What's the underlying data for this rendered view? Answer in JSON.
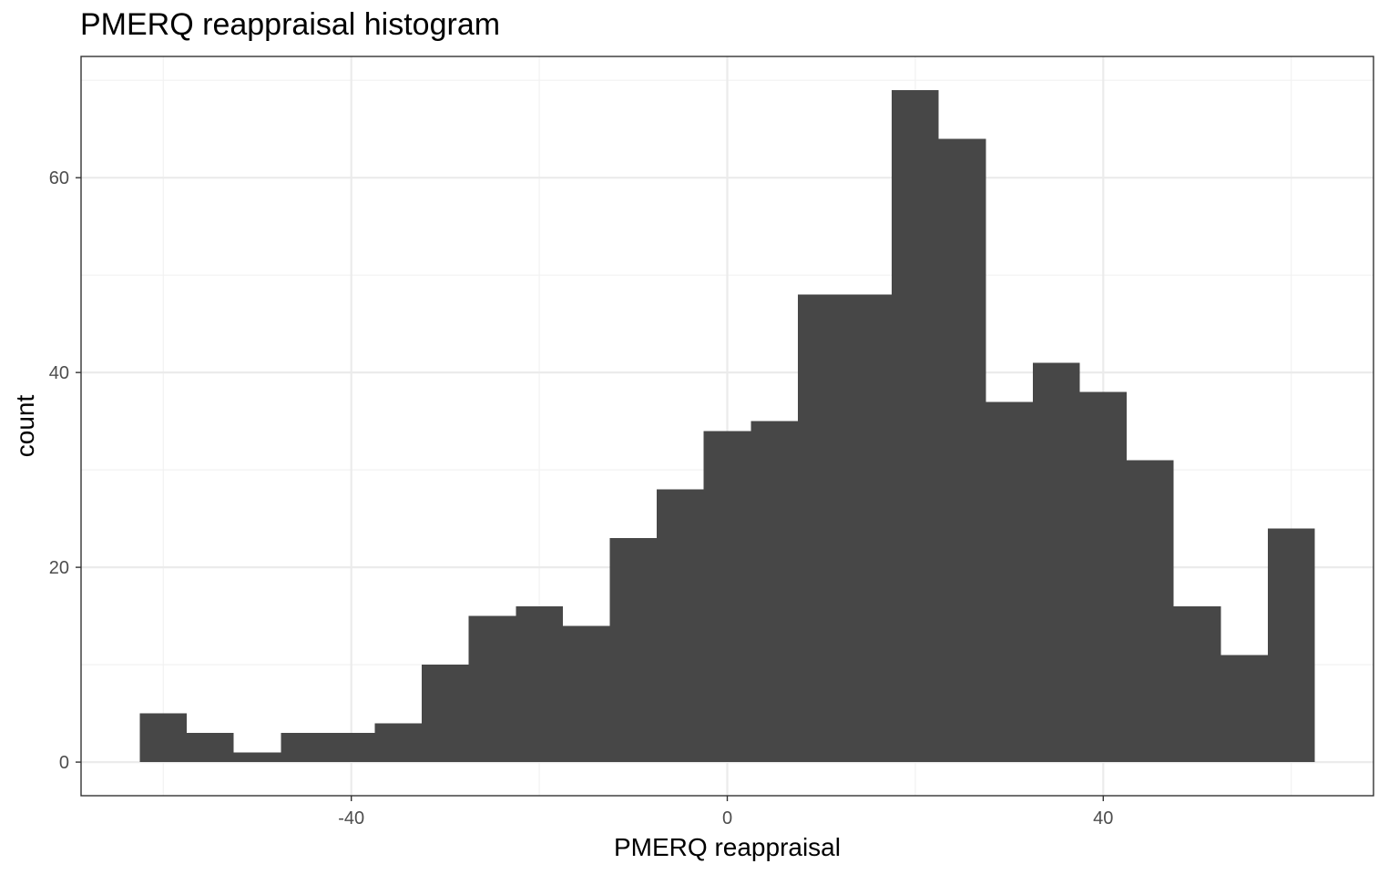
{
  "chart_data": {
    "type": "bar",
    "title": "PMERQ reappraisal histogram",
    "xlabel": "PMERQ reappraisal",
    "ylabel": "count",
    "bin_width": 5,
    "bins": [
      {
        "start": -62.5,
        "end": -57.5,
        "count": 5
      },
      {
        "start": -57.5,
        "end": -52.5,
        "count": 3
      },
      {
        "start": -52.5,
        "end": -47.5,
        "count": 1
      },
      {
        "start": -47.5,
        "end": -42.5,
        "count": 3
      },
      {
        "start": -42.5,
        "end": -37.5,
        "count": 3
      },
      {
        "start": -37.5,
        "end": -32.5,
        "count": 4
      },
      {
        "start": -32.5,
        "end": -27.5,
        "count": 10
      },
      {
        "start": -27.5,
        "end": -22.5,
        "count": 15
      },
      {
        "start": -22.5,
        "end": -17.5,
        "count": 16
      },
      {
        "start": -17.5,
        "end": -12.5,
        "count": 14
      },
      {
        "start": -12.5,
        "end": -7.5,
        "count": 23
      },
      {
        "start": -7.5,
        "end": -2.5,
        "count": 28
      },
      {
        "start": -2.5,
        "end": 2.5,
        "count": 34
      },
      {
        "start": 2.5,
        "end": 7.5,
        "count": 35
      },
      {
        "start": 7.5,
        "end": 12.5,
        "count": 48
      },
      {
        "start": 12.5,
        "end": 17.5,
        "count": 48
      },
      {
        "start": 17.5,
        "end": 22.5,
        "count": 69
      },
      {
        "start": 22.5,
        "end": 27.5,
        "count": 64
      },
      {
        "start": 27.5,
        "end": 32.5,
        "count": 37
      },
      {
        "start": 32.5,
        "end": 37.5,
        "count": 41
      },
      {
        "start": 37.5,
        "end": 42.5,
        "count": 38
      },
      {
        "start": 42.5,
        "end": 47.5,
        "count": 31
      },
      {
        "start": 47.5,
        "end": 52.5,
        "count": 16
      },
      {
        "start": 52.5,
        "end": 57.5,
        "count": 11
      },
      {
        "start": 57.5,
        "end": 62.5,
        "count": 24
      }
    ],
    "x_ticks": [
      "-40",
      "0",
      "40"
    ],
    "x_tick_values": [
      -40,
      0,
      40
    ],
    "y_ticks": [
      "0",
      "20",
      "40",
      "60"
    ],
    "y_tick_values": [
      0,
      20,
      40,
      60
    ],
    "xlim": [
      -68.75,
      68.75
    ],
    "ylim": [
      -3.45,
      72.45
    ],
    "grid": true,
    "colors": {
      "bar_fill": "#474747",
      "panel_border": "#333333",
      "grid_major": "#ebebeb",
      "grid_minor": "#f2f2f2"
    }
  }
}
